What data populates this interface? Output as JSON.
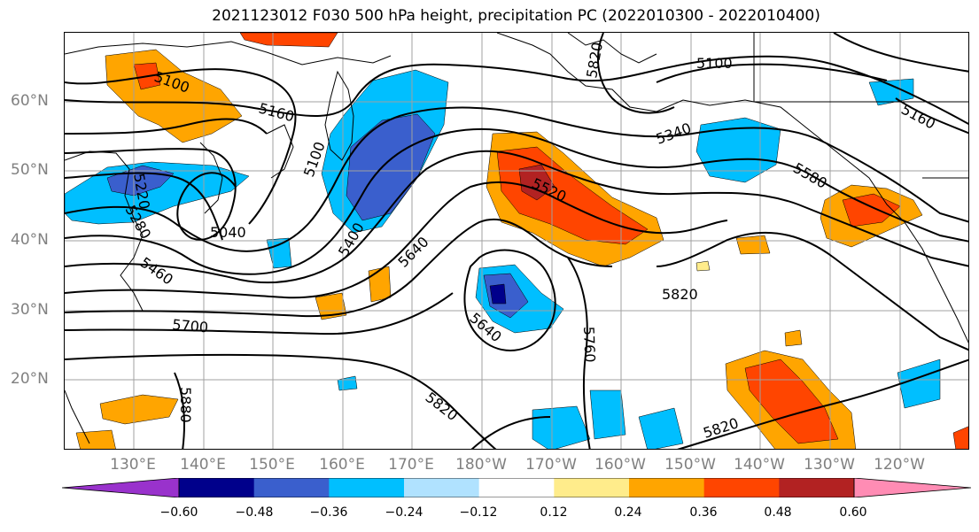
{
  "title": "2021123012 F030 500 hPa height, precipitation PC (2022010300 - 2022010400)",
  "lat_labels": [
    "60°N",
    "50°N",
    "40°N",
    "30°N",
    "20°N"
  ],
  "lon_labels": [
    "130°E",
    "140°E",
    "150°E",
    "160°E",
    "170°E",
    "180°W",
    "170°W",
    "160°W",
    "150°W",
    "140°W",
    "130°W",
    "120°W"
  ],
  "contour_labels": [
    "5100",
    "5160",
    "5100",
    "5220",
    "5280",
    "5040",
    "5460",
    "5400",
    "5640",
    "5700",
    "5520",
    "5640",
    "5760",
    "5820",
    "5340",
    "5580",
    "5100",
    "5160",
    "5880",
    "5820",
    "5820",
    "5820"
  ],
  "colorbar": {
    "ticks": [
      "−0.60",
      "−0.48",
      "−0.36",
      "−0.24",
      "−0.12",
      "0.12",
      "0.24",
      "0.36",
      "0.48",
      "0.60"
    ],
    "colors": [
      "#9932cc",
      "#00008b",
      "#3a5fcd",
      "#00bfff",
      "#b0e2ff",
      "#ffffff",
      "#ffec8b",
      "#ffa500",
      "#ff4500",
      "#b22222",
      "#ff8cb4"
    ]
  },
  "colors": {
    "blue_light": "#00bfff",
    "blue_mid": "#3a5fcd",
    "blue_dark": "#00008b",
    "yellow": "#ffec8b",
    "orange": "#ffa500",
    "red_orange": "#ff4500",
    "dark_red": "#b22222",
    "grid": "#a0a0a0",
    "axis_text": "#808080"
  }
}
